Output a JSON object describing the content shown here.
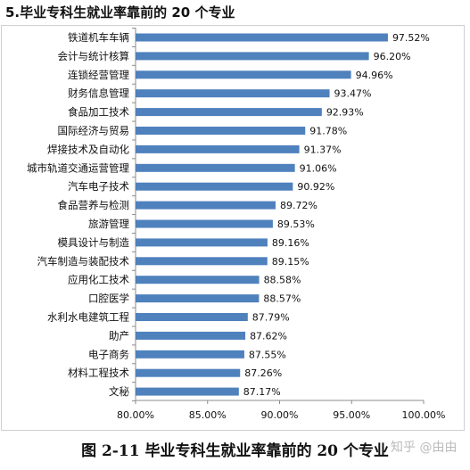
{
  "heading": "5.毕业专科生就业率靠前的 20 个专业",
  "caption": "图 2-11   毕业专科生就业率靠前的 20 个专业",
  "watermark": "知乎 @由由",
  "chart_data": {
    "type": "bar",
    "orientation": "horizontal",
    "title": "",
    "xlabel": "",
    "ylabel": "",
    "categories": [
      "铁道机车车辆",
      "会计与统计核算",
      "连锁经营管理",
      "财务信息管理",
      "食品加工技术",
      "国际经济与贸易",
      "焊接技术及自动化",
      "城市轨道交通运营管理",
      "汽车电子技术",
      "食品营养与检测",
      "旅游管理",
      "模具设计与制造",
      "汽车制造与装配技术",
      "应用化工技术",
      "口腔医学",
      "水利水电建筑工程",
      "助产",
      "电子商务",
      "材料工程技术",
      "文秘"
    ],
    "values": [
      97.52,
      96.2,
      94.96,
      93.47,
      92.93,
      91.78,
      91.37,
      91.06,
      90.92,
      89.72,
      89.53,
      89.16,
      89.15,
      88.58,
      88.57,
      87.79,
      87.62,
      87.55,
      87.26,
      87.17
    ],
    "value_labels": [
      "97.52%",
      "96.20%",
      "94.96%",
      "93.47%",
      "92.93%",
      "91.78%",
      "91.37%",
      "91.06%",
      "90.92%",
      "89.72%",
      "89.53%",
      "89.16%",
      "89.15%",
      "88.58%",
      "88.57%",
      "87.79%",
      "87.62%",
      "87.55%",
      "87.26%",
      "87.17%"
    ],
    "xlim": [
      80,
      100
    ],
    "x_ticks": [
      80,
      85,
      90,
      95,
      100
    ],
    "x_tick_labels": [
      "80.00%",
      "85.00%",
      "90.00%",
      "95.00%",
      "100.00%"
    ],
    "grid": false,
    "legend": "none",
    "bar_color": "#4f81bd"
  }
}
